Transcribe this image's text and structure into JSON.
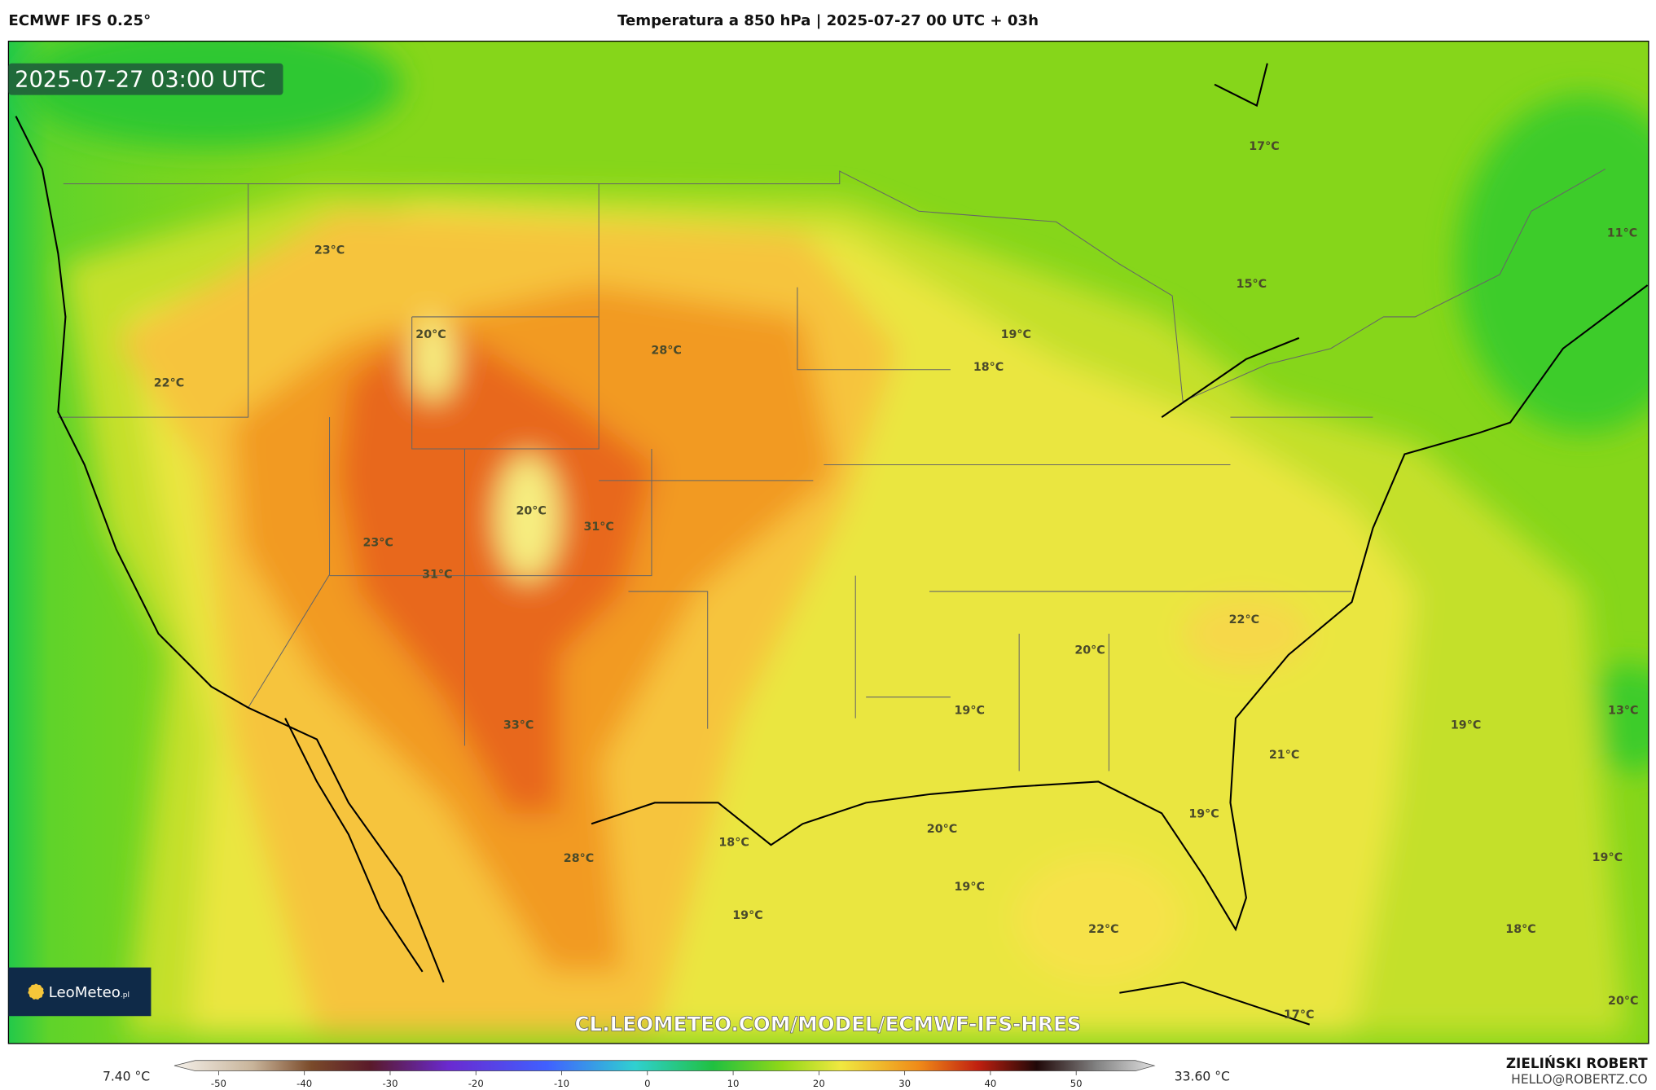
{
  "header": {
    "model": "ECMWF IFS 0.25°",
    "title": "Temperatura a 850 hPa | 2025-07-27 00 UTC + 03h"
  },
  "map": {
    "timestamp": "2025-07-27 03:00 UTC",
    "labels": [
      "17°C",
      "23°C",
      "11°C",
      "15°C",
      "20°C",
      "28°C",
      "19°C",
      "22°C",
      "18°C",
      "20°C",
      "31°C",
      "23°C",
      "31°C",
      "22°C",
      "20°C",
      "19°C",
      "33°C",
      "19°C",
      "13°C",
      "21°C",
      "19°C",
      "20°C",
      "18°C",
      "28°C",
      "19°C",
      "19°C",
      "19°C",
      "22°C",
      "18°C",
      "20°C",
      "17°C"
    ],
    "watermark": "CL.LEOMETEO.COM/MODEL/ECMWF-IFS-HRES",
    "logo": {
      "name": "LeoMeteo",
      "suffix": ".pl"
    }
  },
  "colorbar": {
    "min_label": "7.40 °C",
    "max_label": "33.60 °C",
    "ticks": [
      -50,
      -40,
      -30,
      -20,
      -10,
      0,
      10,
      20,
      30,
      40,
      50
    ]
  },
  "footer": {
    "author": "ZIELIŃSKI ROBERT",
    "email": "HELLO@ROBERTZ.CO"
  }
}
